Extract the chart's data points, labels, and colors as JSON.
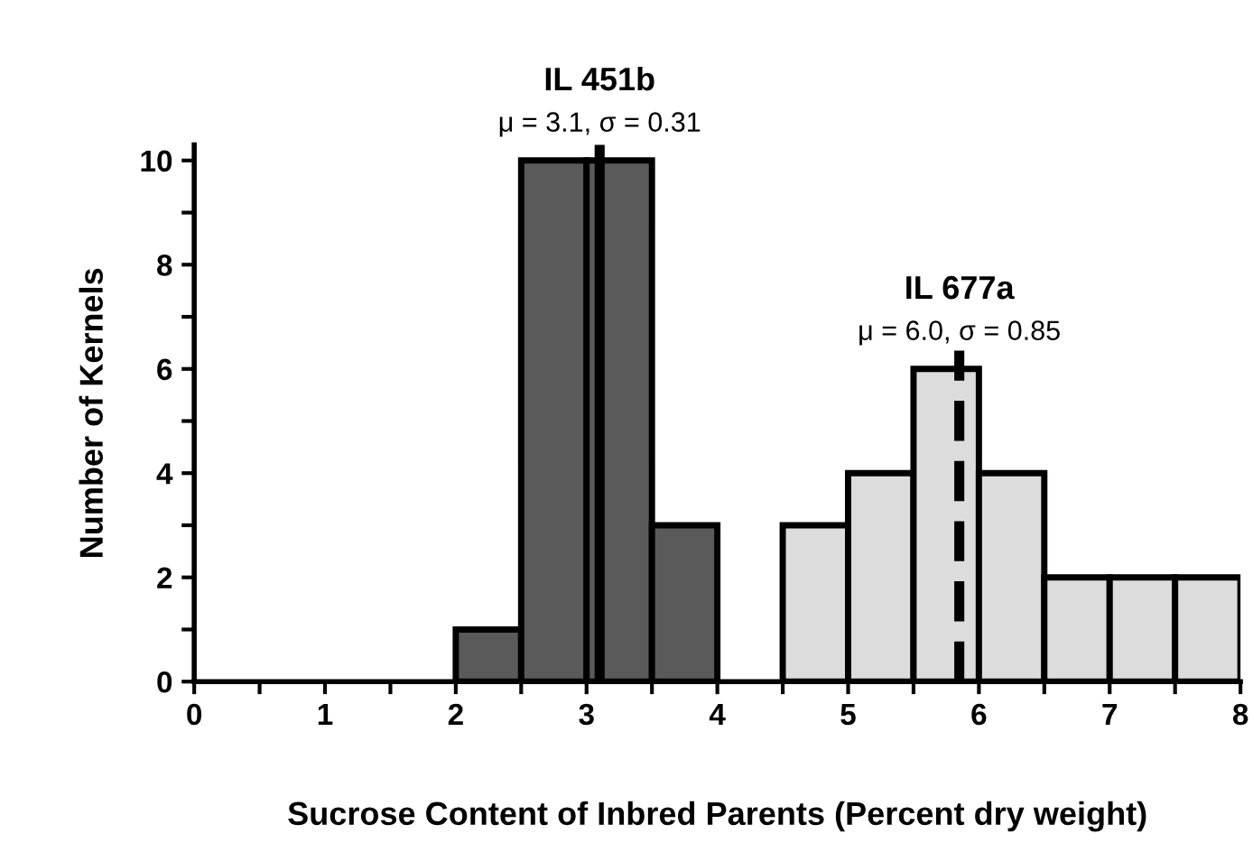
{
  "chart_data": {
    "type": "histogram",
    "xlabel": "Sucrose Content of Inbred Parents (Percent dry weight)",
    "ylabel": "Number of Kernels",
    "bins": [
      2,
      2.5,
      3,
      3.5,
      4,
      4.5,
      5,
      5.5,
      6,
      6.5,
      7,
      7.5,
      8
    ],
    "series": [
      {
        "name": "IL 451b",
        "color": "#5a5a5a",
        "values": [
          1,
          10,
          10,
          3,
          null,
          null,
          null,
          null,
          null,
          null,
          null,
          null
        ]
      },
      {
        "name": "IL 677a",
        "color": "#dcdcdc",
        "values": [
          null,
          null,
          null,
          null,
          null,
          3,
          4,
          6,
          4,
          2,
          2,
          2
        ]
      }
    ],
    "ref_lines": [
      {
        "axis": "x",
        "value": 3.1,
        "color": "#000000",
        "line_style": "solid"
      },
      {
        "axis": "x",
        "value": 5.85,
        "color": "#000000",
        "line_style": "dashed"
      }
    ],
    "annotations": [
      "μ = 3.1, σ = 0.31",
      "μ = 6.0, σ = 0.85"
    ],
    "xlim": [
      0,
      8
    ],
    "ylim": [
      0,
      10.3
    ],
    "xticks": [
      0,
      {
        "value": 0.5,
        "label": null
      },
      1,
      {
        "value": 1.5,
        "label": null
      },
      2,
      {
        "value": 2.5,
        "label": null
      },
      3,
      {
        "value": 3.5,
        "label": null
      },
      4,
      {
        "value": 4.5,
        "label": null
      },
      5,
      {
        "value": 5.5,
        "label": null
      },
      6,
      {
        "value": 6.5,
        "label": null
      },
      7,
      {
        "value": 7.5,
        "label": null
      },
      8
    ],
    "yticks": [
      0,
      {
        "value": 1,
        "label": null
      },
      2,
      {
        "value": 3,
        "label": null
      },
      4,
      {
        "value": 5,
        "label": null
      },
      6,
      {
        "value": 7,
        "label": null
      },
      8,
      {
        "value": 9,
        "label": null
      },
      10
    ],
    "grid": false,
    "legend": false
  }
}
